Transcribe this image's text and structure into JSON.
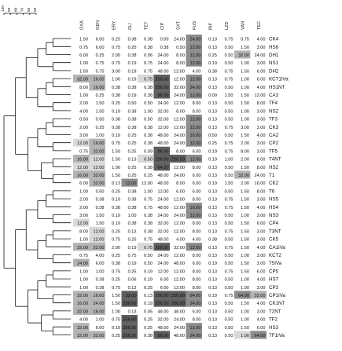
{
  "chart_data": {
    "type": "heatmap",
    "title": "",
    "xlabel": "",
    "ylabel": "",
    "scale_ticks": [
      "100",
      "90",
      "80",
      "70",
      "60",
      "50"
    ],
    "columns": [
      "OXA",
      "GEN",
      "ERY",
      "CLI",
      "TET",
      "CIP",
      "SXT",
      "FUS",
      "RIF",
      "LZD",
      "VAN",
      "TEC"
    ],
    "shade_colors": [
      "#ffffff",
      "#d9d9d9",
      "#b3b3b3",
      "#8c8c8c",
      "#5e5e5e"
    ],
    "rows": [
      {
        "label": "CK4",
        "values": [
          "1.50",
          "6.00",
          "0.25",
          "0.38",
          "0.38",
          "0.50",
          "24.00",
          "24.00",
          "0.13",
          "0.75",
          "0.75",
          "4.00"
        ],
        "shade": [
          0,
          0,
          0,
          0,
          0,
          0,
          0,
          3,
          0,
          0,
          0,
          0
        ]
      },
      {
        "label": "HS6",
        "values": [
          "0.75",
          "6.00",
          "0.75",
          "0.25",
          "0.38",
          "0.38",
          "0.50",
          "12.00",
          "0.13",
          "0.50",
          "1.50",
          "3.00"
        ],
        "shade": [
          0,
          0,
          0,
          0,
          0,
          0,
          0,
          3,
          0,
          0,
          0,
          0
        ]
      },
      {
        "label": "DH1",
        "values": [
          "6.00",
          "0.25",
          "2.00",
          "0.38",
          "0.06",
          "24.00",
          "8.00",
          "12.00",
          "0.25",
          "0.50",
          "32.00",
          "24.00"
        ],
        "shade": [
          0,
          0,
          0,
          0,
          0,
          0,
          0,
          3,
          0,
          0,
          2,
          0
        ]
      },
      {
        "label": "NS1",
        "values": [
          "1.00",
          "0.75",
          "0.75",
          "0.19",
          "0.75",
          "24.00",
          "8.00",
          "12.00",
          "0.19",
          "0.50",
          "1.00",
          "3.00"
        ],
        "shade": [
          0,
          0,
          0,
          0,
          0,
          0,
          0,
          3,
          0,
          0,
          0,
          0
        ]
      },
      {
        "label": "DH2",
        "values": [
          "1.50",
          "0.75",
          "3.00",
          "0.19",
          "0.75",
          "48.00",
          "12.00",
          "4.00",
          "0.38",
          "0.75",
          "1.50",
          "6.00"
        ],
        "shade": [
          0,
          0,
          0,
          0,
          0,
          0,
          0,
          0,
          0,
          0,
          0,
          0
        ]
      },
      {
        "label": "KCT1IVa",
        "values": [
          "32.00",
          "16.00",
          "1.00",
          "0.19",
          "0.75",
          "256.00",
          "12.00",
          "12.00",
          "0.13",
          "0.75",
          "1.00",
          "6.00"
        ],
        "shade": [
          2,
          2,
          0,
          0,
          1,
          4,
          0,
          3,
          0,
          0,
          0,
          0
        ]
      },
      {
        "label": "HS1NT",
        "values": [
          "8.00",
          "16.00",
          "0.38",
          "0.38",
          "0.38",
          "256.00",
          "32.00",
          "24.00",
          "0.13",
          "0.50",
          "1.00",
          "4.00"
        ],
        "shade": [
          0,
          2,
          0,
          0,
          0,
          4,
          0,
          3,
          0,
          0,
          0,
          0
        ]
      },
      {
        "label": "CA3",
        "values": [
          "1.00",
          "0.25",
          "0.38",
          "0.19",
          "0.38",
          "96.00",
          "24.00",
          "12.00",
          "0.09",
          "1.50",
          "1.50",
          "12.00"
        ],
        "shade": [
          0,
          0,
          0,
          0,
          0,
          4,
          0,
          3,
          0,
          0,
          0,
          0
        ]
      },
      {
        "label": "TF4",
        "values": [
          "2.00",
          "1.50",
          "0.25",
          "0.50",
          "0.50",
          "24.00",
          "12.00",
          "8.00",
          "0.13",
          "0.50",
          "1.50",
          "8.00"
        ],
        "shade": [
          0,
          0,
          0,
          0,
          0,
          0,
          0,
          0,
          0,
          0,
          0,
          0
        ]
      },
      {
        "label": "NS2",
        "values": [
          "4.00",
          "1.50",
          "0.19",
          "0.38",
          "1.00",
          "32.00",
          "8.00",
          "8.00",
          "0.13",
          "0.50",
          "1.00",
          "3.00"
        ],
        "shade": [
          0,
          0,
          0,
          0,
          0,
          0,
          0,
          0,
          0,
          0,
          0,
          0
        ]
      },
      {
        "label": "TF3",
        "values": [
          "0.50",
          "0.50",
          "0.38",
          "0.38",
          "0.50",
          "32.00",
          "12.00",
          "12.00",
          "0.13",
          "0.50",
          "1.00",
          "3.00"
        ],
        "shade": [
          0,
          0,
          0,
          0,
          0,
          0,
          0,
          3,
          0,
          0,
          0,
          0
        ]
      },
      {
        "label": "CK3",
        "values": [
          "2.00",
          "0.25",
          "0.38",
          "0.38",
          "0.38",
          "12.00",
          "12.00",
          "12.00",
          "0.13",
          "0.75",
          "3.00",
          "3.00"
        ],
        "shade": [
          0,
          0,
          0,
          0,
          0,
          0,
          0,
          3,
          0,
          0,
          0,
          0
        ]
      },
      {
        "label": "CA2",
        "values": [
          "3.00",
          "1.00",
          "0.19",
          "0.25",
          "0.38",
          "48.00",
          "24.00",
          "16.00",
          "0.50",
          "0.50",
          "1.50",
          "4.00"
        ],
        "shade": [
          0,
          0,
          0,
          0,
          0,
          0,
          0,
          3,
          0,
          0,
          0,
          0
        ]
      },
      {
        "label": "CP2",
        "values": [
          "12.00",
          "16.00",
          "0.75",
          "0.25",
          "0.38",
          "48.00",
          "24.00",
          "12.00",
          "0.25",
          "0.75",
          "2.00",
          "3.00"
        ],
        "shade": [
          1,
          2,
          0,
          0,
          0,
          0,
          0,
          3,
          0,
          0,
          0,
          0
        ]
      },
      {
        "label": "TF5",
        "values": [
          "0.75",
          "32.00",
          "1.50",
          "0.25",
          "0.09",
          "96.00",
          "8.00",
          "6.00",
          "0.19",
          "0.75",
          "8.00",
          "3.00"
        ],
        "shade": [
          0,
          2,
          0,
          0,
          0,
          4,
          0,
          0,
          0,
          0,
          0,
          0
        ]
      },
      {
        "label": "T4NT",
        "values": [
          "16.00",
          "12.00",
          "1.50",
          "0.13",
          "0.50",
          "256.00",
          "256.00",
          "12.00",
          "0.19",
          "1.00",
          "2.00",
          "6.00"
        ],
        "shade": [
          2,
          1,
          0,
          0,
          1,
          4,
          4,
          3,
          0,
          0,
          0,
          0
        ]
      },
      {
        "label": "HS2",
        "values": [
          "12.00",
          "12.00",
          "1.00",
          "0.25",
          "0.38",
          "64.00",
          "12.00",
          "8.00",
          "0.13",
          "0.50",
          "1.50",
          "8.00"
        ],
        "shade": [
          1,
          1,
          0,
          0,
          0,
          4,
          0,
          0,
          0,
          0,
          0,
          0
        ]
      },
      {
        "label": "T1",
        "values": [
          "16.00",
          "32.00",
          "1.50",
          "0.25",
          "0.25",
          "48.00",
          "24.00",
          "6.00",
          "0.13",
          "0.50",
          "32.00",
          "24.00"
        ],
        "shade": [
          2,
          2,
          0,
          0,
          0,
          0,
          0,
          0,
          0,
          0,
          2,
          0
        ]
      },
      {
        "label": "CK2",
        "values": [
          "6.00",
          "32.00",
          "0.13",
          "12.00",
          "12.00",
          "48.00",
          "8.00",
          "6.00",
          "0.19",
          "1.50",
          "2.00",
          "16.00"
        ],
        "shade": [
          0,
          2,
          0,
          3,
          0,
          0,
          0,
          0,
          0,
          0,
          0,
          0
        ]
      },
      {
        "label": "T6",
        "values": [
          "1.00",
          "0.50",
          "0.25",
          "0.38",
          "1.00",
          "12.00",
          "6.00",
          "6.00",
          "0.13",
          "0.50",
          "1.50",
          "8.00"
        ],
        "shade": [
          0,
          0,
          0,
          0,
          0,
          0,
          0,
          0,
          0,
          0,
          0,
          0
        ]
      },
      {
        "label": "HS5",
        "values": [
          "2.00",
          "0.38",
          "0.19",
          "0.38",
          "0.75",
          "24.00",
          "12.00",
          "8.00",
          "0.13",
          "0.75",
          "1.50",
          "3.00"
        ],
        "shade": [
          0,
          0,
          0,
          0,
          0,
          0,
          0,
          0,
          0,
          0,
          0,
          0
        ]
      },
      {
        "label": "HS4",
        "values": [
          "2.00",
          "0.38",
          "0.38",
          "0.38",
          "0.75",
          "48.00",
          "12.00",
          "16.00",
          "0.13",
          "0.75",
          "1.50",
          "4.00"
        ],
        "shade": [
          0,
          0,
          0,
          0,
          0,
          0,
          0,
          3,
          0,
          0,
          0,
          0
        ]
      },
      {
        "label": "NS3",
        "values": [
          "3.00",
          "1.50",
          "0.19",
          "1.00",
          "0.38",
          "24.00",
          "24.00",
          "12.00",
          "0.13",
          "0.50",
          "1.00",
          "3.00"
        ],
        "shade": [
          0,
          0,
          0,
          0,
          0,
          0,
          0,
          3,
          0,
          0,
          0,
          0
        ]
      },
      {
        "label": "CP4",
        "values": [
          "12.00",
          "1.50",
          "0.19",
          "0.38",
          "0.38",
          "32.00",
          "12.00",
          "8.00",
          "0.13",
          "0.50",
          "1.50",
          "6.00"
        ],
        "shade": [
          1,
          0,
          0,
          0,
          0,
          0,
          0,
          0,
          0,
          0,
          0,
          0
        ]
      },
      {
        "label": "T3NT",
        "values": [
          "8.00",
          "12.00",
          "0.25",
          "0.13",
          "0.38",
          "32.00",
          "12.00",
          "8.00",
          "0.13",
          "0.75",
          "1.50",
          "3.00"
        ],
        "shade": [
          0,
          1,
          0,
          0,
          0,
          0,
          0,
          0,
          0,
          0,
          0,
          0
        ]
      },
      {
        "label": "CK5",
        "values": [
          "1.00",
          "12.00",
          "0.75",
          "0.25",
          "0.75",
          "48.00",
          "4.00",
          "4.00",
          "0.38",
          "0.50",
          "1.50",
          "3.00"
        ],
        "shade": [
          0,
          1,
          0,
          0,
          0,
          0,
          0,
          0,
          0,
          0,
          0,
          0
        ]
      },
      {
        "label": "CA1IVa",
        "values": [
          "32.00",
          "32.00",
          "2.00",
          "0.19",
          "0.75",
          "256.00",
          "32.00",
          "12.00",
          "0.13",
          "0.75",
          "1.50",
          "4.00"
        ],
        "shade": [
          2,
          2,
          0,
          0,
          1,
          4,
          0,
          3,
          0,
          0,
          0,
          0
        ]
      },
      {
        "label": "KCT2",
        "values": [
          "0.75",
          "4.00",
          "0.25",
          "0.75",
          "0.50",
          "24.00",
          "12.00",
          "8.00",
          "0.13",
          "0.50",
          "1.00",
          "3.00"
        ],
        "shade": [
          0,
          0,
          0,
          0,
          0,
          0,
          0,
          0,
          0,
          0,
          0,
          0
        ]
      },
      {
        "label": "T5IVa",
        "values": [
          "24.00",
          "6.00",
          "0.38",
          "0.19",
          "0.50",
          "24.00",
          "48.00",
          "6.00",
          "0.19",
          "0.50",
          "1.50",
          "3.00"
        ],
        "shade": [
          2,
          0,
          0,
          0,
          0,
          0,
          0,
          0,
          0,
          0,
          0,
          0
        ]
      },
      {
        "label": "CP5",
        "values": [
          "1.00",
          "1.00",
          "0.75",
          "0.25",
          "0.19",
          "12.00",
          "12.00",
          "8.00",
          "0.13",
          "0.75",
          "1.50",
          "6.00"
        ],
        "shade": [
          0,
          0,
          0,
          0,
          0,
          0,
          0,
          0,
          0,
          0,
          0,
          0
        ]
      },
      {
        "label": "HS7",
        "values": [
          "1.00",
          "0.38",
          "0.25",
          "0.06",
          "0.19",
          "6.00",
          "12.00",
          "8.00",
          "0.13",
          "0.50",
          "1.00",
          "4.00"
        ],
        "shade": [
          0,
          0,
          0,
          0,
          0,
          0,
          0,
          0,
          0,
          0,
          0,
          0
        ]
      },
      {
        "label": "CP3",
        "values": [
          "1.00",
          "0.38",
          "0.75",
          "0.13",
          "0.25",
          "6.00",
          "12.00",
          "8.00",
          "0.13",
          "0.50",
          "1.00",
          "3.00"
        ],
        "shade": [
          0,
          0,
          0,
          0,
          0,
          0,
          0,
          0,
          0,
          0,
          0,
          0
        ]
      },
      {
        "label": "CP1IVa",
        "values": [
          "32.00",
          "16.00",
          "1.50",
          "32.00",
          "0.13",
          "256.00",
          "256.00",
          "64.00",
          "0.19",
          "0.75",
          "64.00",
          "32.00"
        ],
        "shade": [
          2,
          2,
          0,
          4,
          0,
          4,
          4,
          3,
          0,
          0,
          3,
          2
        ]
      },
      {
        "label": "CK1NT",
        "values": [
          "16.00",
          "24.00",
          "1.50",
          "256.00",
          "0.19",
          "256.00",
          "256.00",
          "24.00",
          "0.13",
          "0.50",
          "1.50",
          "4.00"
        ],
        "shade": [
          2,
          2,
          0,
          4,
          0,
          4,
          4,
          3,
          0,
          0,
          0,
          0
        ]
      },
      {
        "label": "T2NT",
        "values": [
          "32.00",
          "16.00",
          "1.00",
          "0.13",
          "0.05",
          "48.00",
          "48.00",
          "6.00",
          "0.13",
          "0.50",
          "1.00",
          "3.00"
        ],
        "shade": [
          2,
          2,
          0,
          0,
          0,
          0,
          0,
          0,
          0,
          0,
          0,
          0
        ]
      },
      {
        "label": "TF2",
        "values": [
          "4.00",
          "1.00",
          "0.75",
          "256.00",
          "0.25",
          "32.00",
          "24.00",
          "8.00",
          "0.13",
          "0.50",
          "1.00",
          "4.00"
        ],
        "shade": [
          0,
          0,
          0,
          4,
          0,
          0,
          0,
          0,
          0,
          0,
          0,
          0
        ]
      },
      {
        "label": "HS3",
        "values": [
          "32.00",
          "6.00",
          "0.19",
          "256.00",
          "0.25",
          "48.00",
          "24.00",
          "12.00",
          "0.13",
          "0.50",
          "1.50",
          "6.00"
        ],
        "shade": [
          2,
          0,
          0,
          4,
          0,
          0,
          0,
          3,
          0,
          0,
          0,
          0
        ]
      },
      {
        "label": "TF1IVa",
        "values": [
          "32.00",
          "32.00",
          "0.25",
          "256.00",
          "0.38",
          "96.00",
          "48.00",
          "24.00",
          "0.13",
          "0.50",
          "1.00",
          "64.00"
        ],
        "shade": [
          2,
          2,
          0,
          4,
          0,
          4,
          0,
          3,
          0,
          0,
          1,
          3
        ]
      }
    ]
  }
}
